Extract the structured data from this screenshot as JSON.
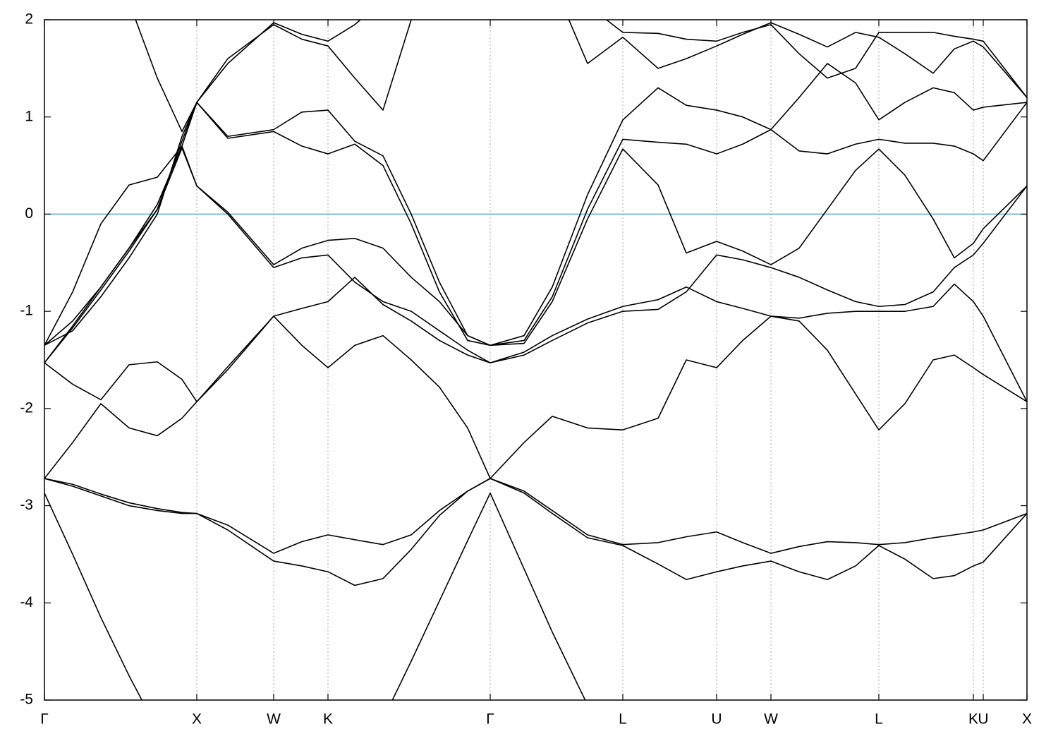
{
  "chart_data": {
    "type": "line",
    "x": [
      0,
      40,
      80,
      120,
      160,
      195,
      216,
      260,
      325,
      365,
      402,
      440,
      480,
      520,
      560,
      600,
      632,
      680,
      720,
      770,
      820,
      870,
      910,
      953,
      990,
      1030,
      1070,
      1110,
      1150,
      1183,
      1220,
      1260,
      1290,
      1317,
      1331,
      1393
    ],
    "xlim": [
      0,
      1393
    ],
    "xticks": [
      {
        "value": 0,
        "label": "Γ"
      },
      {
        "value": 216,
        "label": "X"
      },
      {
        "value": 325,
        "label": "W"
      },
      {
        "value": 402,
        "label": "K"
      },
      {
        "value": 632,
        "label": "Γ"
      },
      {
        "value": 820,
        "label": "L"
      },
      {
        "value": 953,
        "label": "U"
      },
      {
        "value": 1030,
        "label": "W"
      },
      {
        "value": 1183,
        "label": "L"
      },
      {
        "value": 1317,
        "label": "K"
      },
      {
        "value": 1331,
        "label": "U"
      },
      {
        "value": 1393,
        "label": "X"
      }
    ],
    "ylim": [
      -5,
      2
    ],
    "yticks": [
      -5,
      -4,
      -3,
      -2,
      -1,
      0,
      1,
      2
    ],
    "grid": true,
    "grid_color": "#aaaaaa",
    "fermi_level": 0,
    "fermi_color": "#5aaecf",
    "series": [
      {
        "color": "#000000",
        "values": [
          -2.87,
          -3.5,
          -4.15,
          -4.75,
          -5.3,
          null,
          null,
          null,
          null,
          null,
          null,
          null,
          -5.2,
          -4.6,
          -3.98,
          -3.36,
          -2.87,
          -3.65,
          -4.3,
          -5.05,
          null,
          null,
          null,
          null,
          null,
          null,
          null,
          null,
          null,
          null,
          null,
          null,
          null,
          null,
          null,
          null
        ]
      },
      {
        "color": "#000000",
        "values": [
          -2.72,
          -2.78,
          -2.88,
          -2.97,
          -3.03,
          -3.07,
          -3.08,
          -3.2,
          -3.49,
          -3.37,
          -3.3,
          -3.35,
          -3.4,
          -3.3,
          -3.05,
          -2.85,
          -2.72,
          -2.85,
          -3.05,
          -3.3,
          -3.4,
          -3.38,
          -3.32,
          -3.27,
          -3.38,
          -3.49,
          -3.42,
          -3.37,
          -3.38,
          -3.4,
          -3.38,
          -3.33,
          -3.3,
          -3.27,
          -3.25,
          -3.08
        ]
      },
      {
        "color": "#000000",
        "values": [
          -2.72,
          -2.8,
          -2.9,
          -3.0,
          -3.05,
          -3.08,
          -3.08,
          -3.25,
          -3.57,
          -3.62,
          -3.68,
          -3.82,
          -3.75,
          -3.45,
          -3.1,
          -2.85,
          -2.72,
          -2.87,
          -3.08,
          -3.33,
          -3.41,
          -3.6,
          -3.76,
          -3.68,
          -3.62,
          -3.57,
          -3.68,
          -3.76,
          -3.62,
          -3.41,
          -3.55,
          -3.75,
          -3.72,
          -3.62,
          -3.58,
          -3.08
        ]
      },
      {
        "color": "#000000",
        "values": [
          -2.72,
          -2.35,
          -1.95,
          -2.2,
          -2.28,
          -2.1,
          -1.93,
          -1.6,
          -1.05,
          -0.97,
          -0.9,
          -0.65,
          -0.93,
          -1.1,
          -1.3,
          -1.45,
          -1.53,
          -1.42,
          -1.25,
          -1.08,
          -0.95,
          -0.88,
          -0.75,
          -0.9,
          -0.97,
          -1.05,
          -1.07,
          -1.02,
          -1.0,
          -1.0,
          -1.0,
          -0.95,
          -0.72,
          -0.9,
          -1.05,
          -1.93
        ]
      },
      {
        "color": "#000000",
        "values": [
          -1.53,
          -1.75,
          -1.91,
          -1.55,
          -1.52,
          -1.7,
          -1.93,
          -1.57,
          -1.05,
          -1.35,
          -1.58,
          -1.35,
          -1.25,
          -1.5,
          -1.78,
          -2.2,
          -2.72,
          -2.35,
          -2.08,
          -2.2,
          -2.22,
          -2.1,
          -1.5,
          -1.58,
          -1.3,
          -1.05,
          -1.1,
          -1.4,
          -1.85,
          -2.22,
          -1.95,
          -1.5,
          -1.45,
          -1.58,
          -1.65,
          -1.93
        ]
      },
      {
        "color": "#000000",
        "values": [
          -1.53,
          -1.15,
          -0.75,
          -0.35,
          0.1,
          0.7,
          0.29,
          0.0,
          -0.55,
          -0.45,
          -0.42,
          -0.7,
          -0.9,
          -1.0,
          -1.2,
          -1.4,
          -1.53,
          -1.45,
          -1.3,
          -1.12,
          -1.0,
          -0.98,
          -0.8,
          -0.42,
          -0.47,
          -0.55,
          -0.65,
          -0.78,
          -0.9,
          -0.95,
          -0.93,
          -0.8,
          -0.55,
          -0.42,
          -0.3,
          0.29
        ]
      },
      {
        "color": "#000000",
        "values": [
          -1.53,
          -1.17,
          -0.78,
          -0.38,
          0.05,
          0.68,
          0.29,
          0.02,
          -0.52,
          -0.35,
          -0.27,
          -0.25,
          -0.35,
          -0.65,
          -0.9,
          -1.25,
          -1.35,
          -1.33,
          -0.9,
          -0.05,
          0.67,
          0.3,
          -0.4,
          -0.28,
          -0.38,
          -0.52,
          -0.35,
          0.05,
          0.45,
          0.67,
          0.4,
          -0.05,
          -0.45,
          -0.3,
          -0.15,
          0.29
        ]
      },
      {
        "color": "#000000",
        "values": [
          -1.35,
          -1.1,
          -0.75,
          -0.35,
          0.05,
          0.75,
          1.15,
          0.8,
          0.87,
          1.05,
          1.07,
          0.75,
          0.6,
          0.0,
          -0.7,
          -1.25,
          -1.35,
          -1.25,
          -0.75,
          0.2,
          0.97,
          1.3,
          1.12,
          1.07,
          1.0,
          0.87,
          1.2,
          1.55,
          1.35,
          0.97,
          1.15,
          1.3,
          1.25,
          1.07,
          1.1,
          1.15
        ]
      },
      {
        "color": "#000000",
        "values": [
          -1.35,
          -1.2,
          -0.85,
          -0.45,
          0.0,
          0.8,
          1.15,
          0.78,
          0.85,
          0.7,
          0.62,
          0.72,
          0.5,
          -0.1,
          -0.8,
          -1.3,
          -1.35,
          -1.3,
          -0.85,
          0.05,
          0.77,
          0.74,
          0.72,
          0.62,
          0.72,
          0.87,
          0.65,
          0.62,
          0.72,
          0.77,
          0.73,
          0.73,
          0.7,
          0.62,
          0.55,
          1.15
        ]
      },
      {
        "color": "#000000",
        "values": [
          -1.35,
          -0.8,
          -0.1,
          0.3,
          0.38,
          0.7,
          1.15,
          1.55,
          1.97,
          1.85,
          1.78,
          1.95,
          2.2,
          null,
          null,
          null,
          null,
          null,
          2.4,
          1.55,
          1.82,
          1.5,
          1.6,
          1.73,
          1.85,
          1.97,
          1.85,
          1.72,
          1.87,
          1.82,
          1.65,
          1.45,
          1.7,
          1.78,
          1.72,
          1.2
        ]
      },
      {
        "color": "#000000",
        "values": [
          null,
          null,
          null,
          2.18,
          1.4,
          0.85,
          1.15,
          1.6,
          1.95,
          1.8,
          1.73,
          1.4,
          1.07,
          2.0,
          2.6,
          null,
          null,
          null,
          null,
          2.15,
          1.87,
          1.86,
          1.8,
          1.78,
          1.87,
          1.95,
          1.65,
          1.4,
          1.5,
          1.87,
          1.87,
          1.87,
          1.83,
          1.8,
          1.78,
          1.2
        ]
      }
    ]
  }
}
